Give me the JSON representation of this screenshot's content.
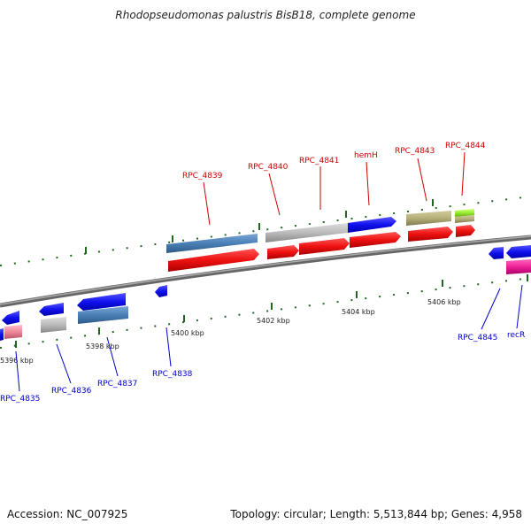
{
  "title": "Rhodopseudomonas palustris BisB18, complete genome",
  "footer": {
    "accession": "Accession: NC_007925",
    "summary": "Topology: circular; Length: 5,513,844 bp; Genes: 4,958"
  },
  "scale": {
    "tick_labels": [
      "5396 kbp",
      "5398 kbp",
      "5400 kbp",
      "5402 kbp",
      "5404 kbp",
      "5406 kbp"
    ]
  },
  "genes_top": [
    "RPC_4839",
    "RPC_4840",
    "RPC_4841",
    "hemH",
    "RPC_4843",
    "RPC_4844"
  ],
  "genes_bottom": [
    "RPC_4835",
    "RPC_4836",
    "RPC_4837",
    "RPC_4838",
    "RPC_4845",
    "recR"
  ],
  "colors": {
    "red": "#ee1111",
    "blue": "#1111ee",
    "steel_blue": "#4a7fb5",
    "gray": "#bbbbbb",
    "olive": "#b5b07a",
    "lime": "#99ee33",
    "pink": "#ee88aa",
    "magenta": "#ee2299",
    "tick_green": "#226622"
  }
}
